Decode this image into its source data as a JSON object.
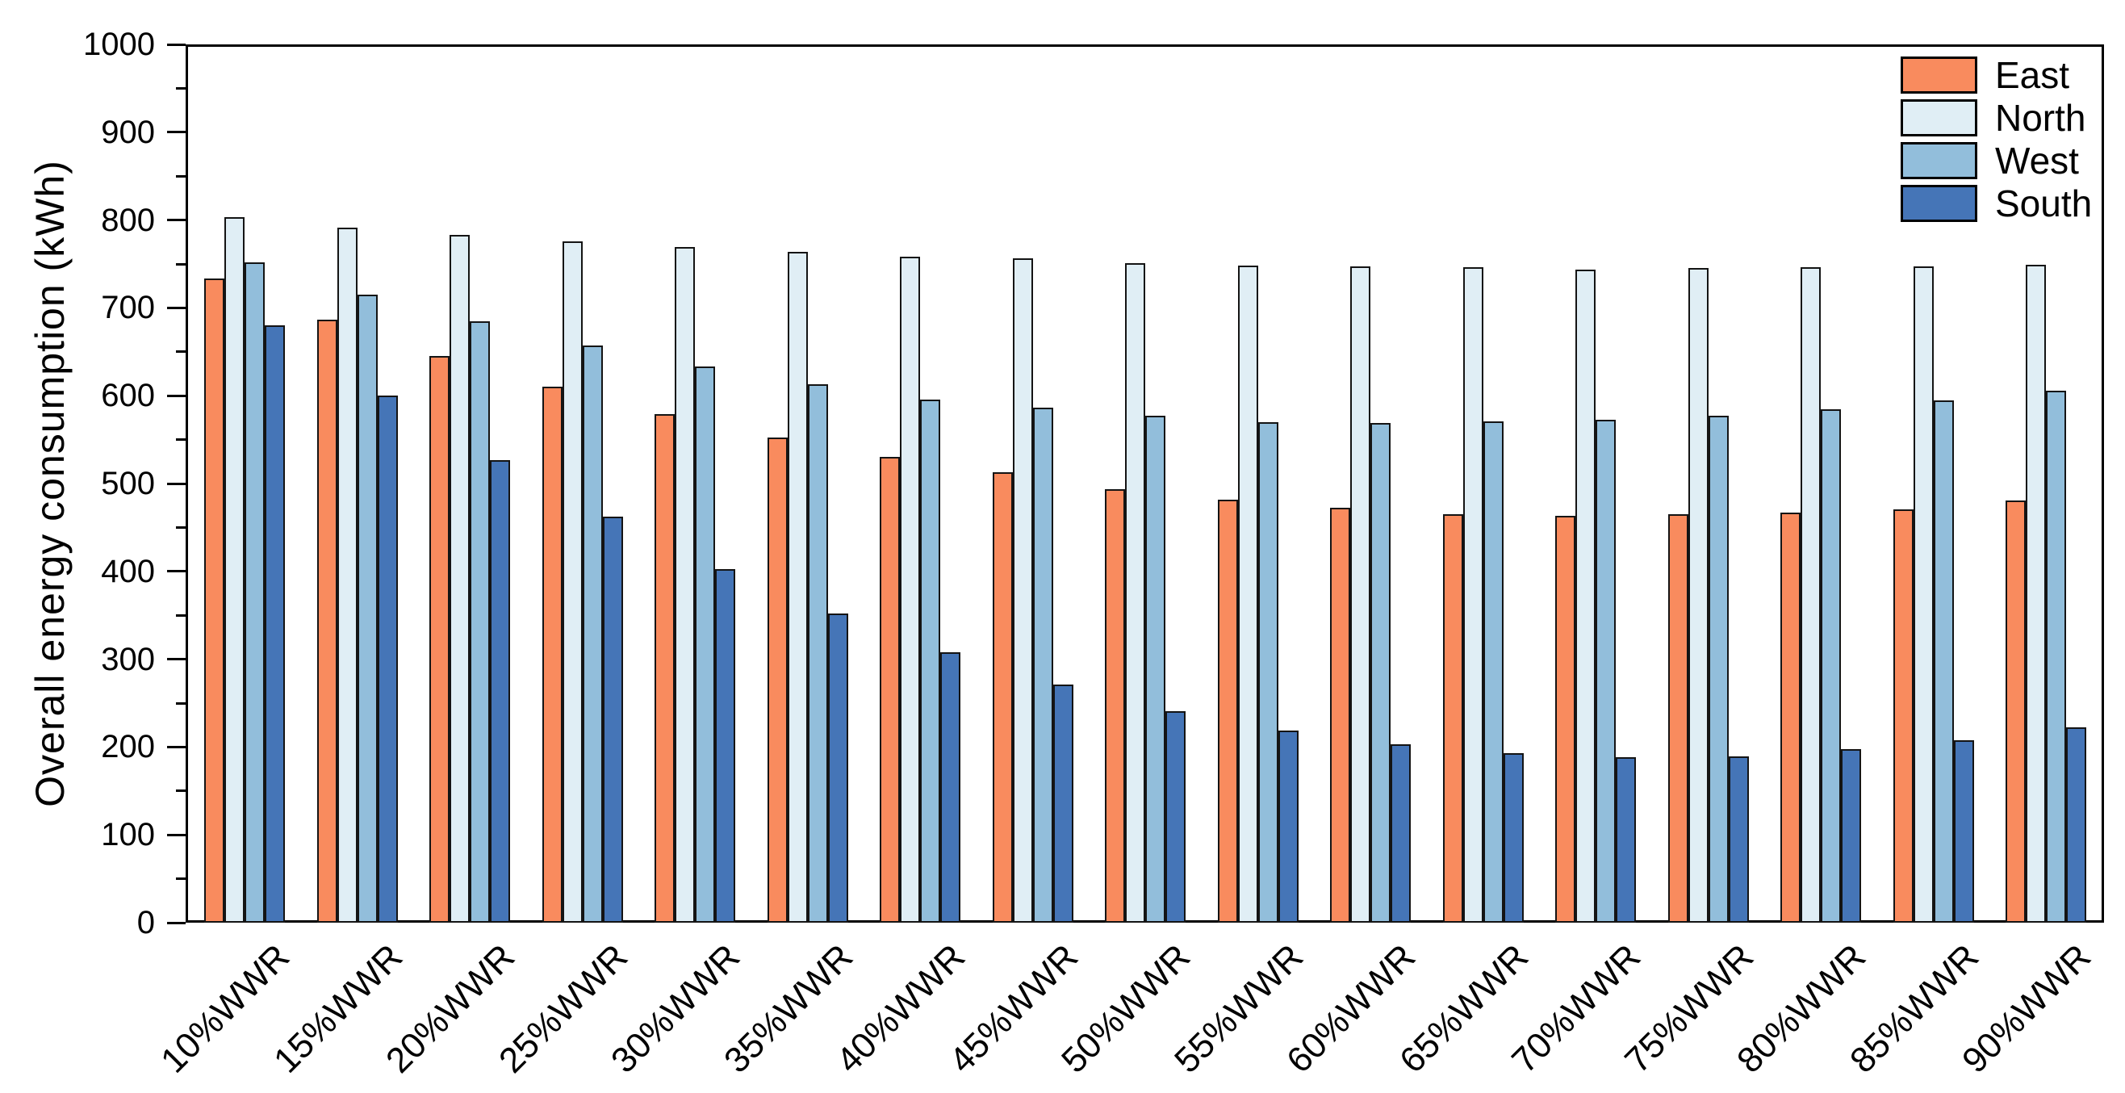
{
  "figure": {
    "background": "#ffffff",
    "frame_color": "#000000",
    "text_color": "#000000"
  },
  "chart_data": {
    "type": "bar",
    "title": "",
    "xlabel": "",
    "ylabel": "Overall energy consumption (kWh)",
    "ylim": [
      0,
      1000
    ],
    "ytick_step": 100,
    "yminor_step": 50,
    "grid": false,
    "legend_position": "top-right",
    "bar_outline_color": "#141414",
    "categories": [
      "10%WWR",
      "15%WWR",
      "20%WWR",
      "25%WWR",
      "30%WWR",
      "35%WWR",
      "40%WWR",
      "45%WWR",
      "50%WWR",
      "55%WWR",
      "60%WWR",
      "65%WWR",
      "70%WWR",
      "75%WWR",
      "80%WWR",
      "85%WWR",
      "90%WWR"
    ],
    "series": [
      {
        "name": "East",
        "color": "#F98B5E",
        "values": [
          733,
          687,
          645,
          610,
          579,
          552,
          530,
          513,
          494,
          482,
          472,
          465,
          463,
          465,
          467,
          471,
          481
        ]
      },
      {
        "name": "North",
        "color": "#E0EEF5",
        "values": [
          803,
          791,
          783,
          776,
          769,
          764,
          758,
          756,
          751,
          748,
          747,
          746,
          744,
          745,
          746,
          747,
          749
        ]
      },
      {
        "name": "West",
        "color": "#92BEDB",
        "values": [
          752,
          715,
          685,
          657,
          633,
          613,
          596,
          586,
          577,
          570,
          569,
          571,
          573,
          577,
          585,
          595,
          606
        ]
      },
      {
        "name": "South",
        "color": "#4575B7",
        "values": [
          680,
          600,
          527,
          462,
          403,
          352,
          308,
          271,
          241,
          219,
          203,
          193,
          188,
          189,
          198,
          208,
          222
        ]
      }
    ]
  }
}
